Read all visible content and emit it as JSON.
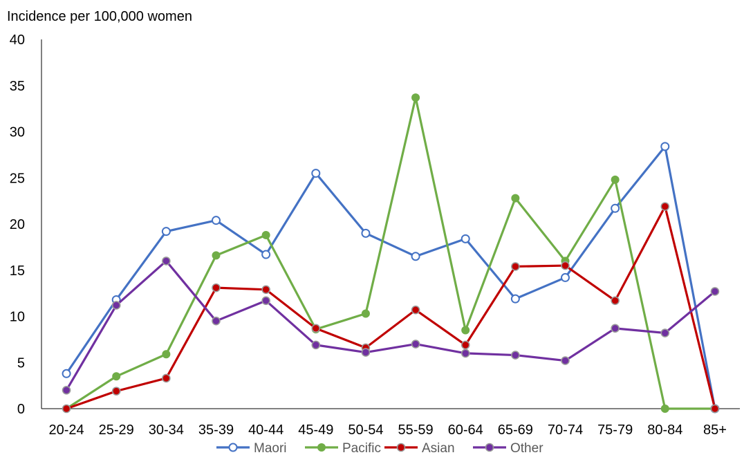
{
  "chart_data": {
    "type": "line",
    "ylabel": "Incidence per 100,000 women",
    "xlabel": "",
    "ylim": [
      0,
      40
    ],
    "yticks": [
      0,
      5,
      10,
      15,
      20,
      25,
      30,
      35,
      40
    ],
    "grid": false,
    "legend_position": "bottom",
    "categories": [
      "20-24",
      "25-29",
      "30-34",
      "35-39",
      "40-44",
      "45-49",
      "50-54",
      "55-59",
      "60-64",
      "65-69",
      "70-74",
      "75-79",
      "80-84",
      "85+"
    ],
    "series": [
      {
        "name": "Maori",
        "color": "#4472C4",
        "marker": "hollow-circle",
        "values": [
          3.8,
          11.8,
          19.2,
          20.4,
          16.7,
          25.5,
          19.0,
          16.5,
          18.4,
          11.9,
          14.2,
          21.7,
          28.4,
          0.0
        ]
      },
      {
        "name": "Pacific",
        "color": "#70AD47",
        "marker": "filled-circle",
        "values": [
          0.0,
          3.5,
          5.9,
          16.6,
          18.8,
          8.6,
          10.3,
          33.7,
          8.5,
          22.8,
          16.0,
          24.8,
          0.0,
          0.0
        ]
      },
      {
        "name": "Asian",
        "color": "#C00000",
        "marker": "bordered-circle",
        "values": [
          0.0,
          1.9,
          3.3,
          13.1,
          12.9,
          8.7,
          6.6,
          10.7,
          6.9,
          15.4,
          15.5,
          11.7,
          21.9,
          0.0
        ]
      },
      {
        "name": "Other",
        "color": "#7030A0",
        "marker": "bordered-circle",
        "values": [
          2.0,
          11.2,
          16.0,
          9.5,
          11.7,
          6.9,
          6.1,
          7.0,
          6.0,
          5.8,
          5.2,
          8.7,
          8.2,
          12.7
        ]
      }
    ]
  }
}
